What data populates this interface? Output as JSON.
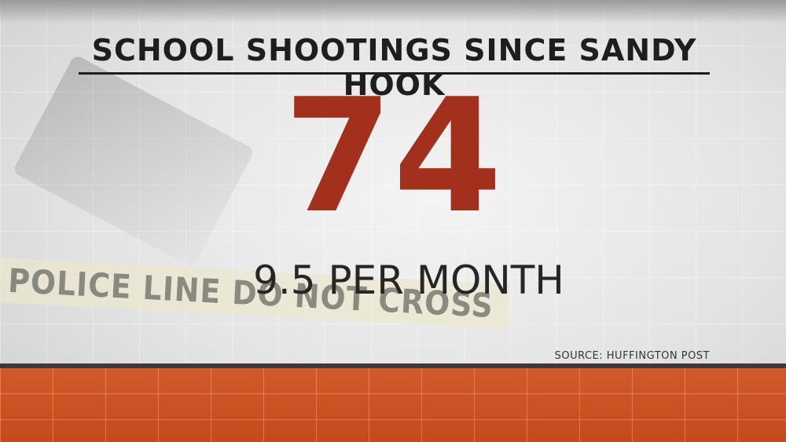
{
  "header": {
    "title": "SCHOOL SHOOTINGS SINCE SANDY HOOK"
  },
  "stat": {
    "value": "74",
    "rate": "9.5 PER MONTH"
  },
  "source": "SOURCE: HUFFINGTON POST",
  "background": {
    "tape_text": "POLICE LINE DO NOT CROSS"
  }
}
